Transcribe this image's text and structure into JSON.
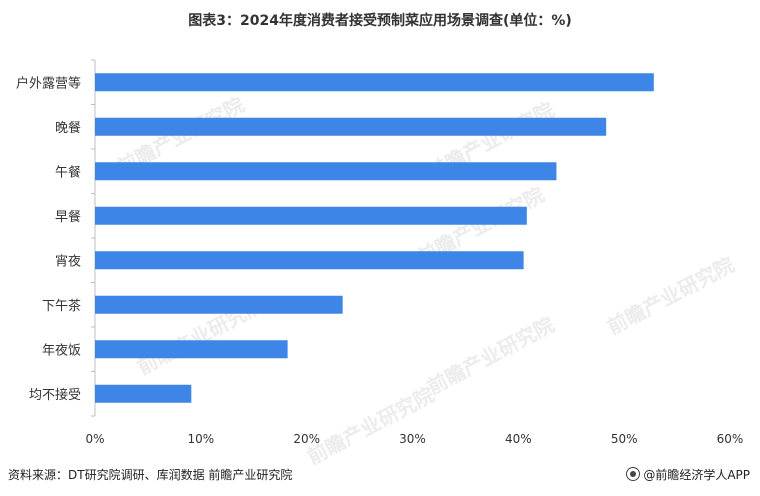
{
  "title": "图表3：2024年度消费者接受预制菜应用场景调查(单位：%)",
  "source": "资料来源：DT研究院调研、库润数据 前瞻产业研究院",
  "brand": "@前瞻经济学人APP",
  "watermark": "前瞻产业研究院",
  "colors": {
    "bar": "#3d85e6",
    "axis": "#bfbfbf"
  },
  "chart_data": {
    "type": "bar",
    "orientation": "horizontal",
    "categories": [
      "户外露营等",
      "晚餐",
      "午餐",
      "早餐",
      "宵夜",
      "下午茶",
      "年夜饭",
      "均不接受"
    ],
    "values": [
      52.8,
      48.3,
      43.6,
      40.8,
      40.5,
      23.4,
      18.2,
      9.1
    ],
    "xlim": [
      0,
      60
    ],
    "xticks": [
      "0%",
      "10%",
      "20%",
      "30%",
      "40%",
      "50%",
      "60%"
    ],
    "xtick_values": [
      0,
      10,
      20,
      30,
      40,
      50,
      60
    ],
    "grid": false,
    "legend": "none"
  }
}
